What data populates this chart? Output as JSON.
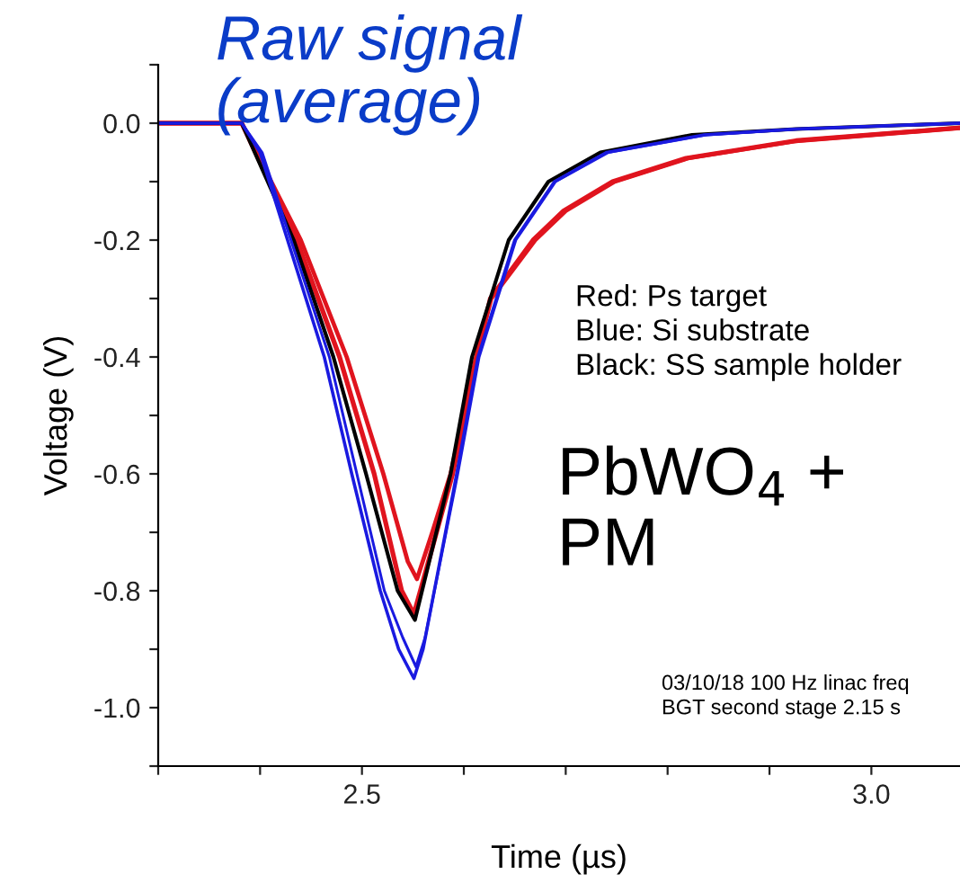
{
  "chart_data": {
    "type": "line",
    "title": "Raw signal\n(average)",
    "xlabel": "Time (µs)",
    "ylabel": "Voltage (V)",
    "annotations": [
      "Red: Ps target\nBlue: Si substrate\nBlack: SS sample holder",
      "PbWO$_{4}$ +\nPM",
      "03/10/18 100 Hz linac freq\nBGT second stage 2.15 s"
    ],
    "xlim": [
      2.3,
      3.087
    ],
    "ylim": [
      -1.1,
      0.1
    ],
    "xticks": [
      {
        "value": 2.3,
        "label": null
      },
      {
        "value": 2.4,
        "label": null
      },
      2.5,
      {
        "value": 2.6,
        "label": null
      },
      {
        "value": 2.7,
        "label": null
      },
      {
        "value": 2.8,
        "label": null
      },
      {
        "value": 2.9,
        "label": null
      },
      {
        "value": 3.0,
        "label": "3.0"
      }
    ],
    "yticks": [
      {
        "value": -1.1,
        "label": null
      },
      {
        "value": -1.0,
        "label": "-1.0"
      },
      {
        "value": -0.9,
        "label": null
      },
      -0.8,
      {
        "value": -0.7,
        "label": null
      },
      -0.6,
      {
        "value": -0.5,
        "label": null
      },
      -0.4,
      {
        "value": -0.3,
        "label": null
      },
      -0.2,
      {
        "value": -0.1,
        "label": null
      },
      {
        "value": 0.0,
        "label": "0.0"
      },
      {
        "value": 0.1,
        "label": null
      }
    ],
    "grid": false,
    "legend": false,
    "marker": "none",
    "line_style": "solid",
    "series": [
      {
        "color": "#e0141e",
        "x": [
          2.3,
          2.382,
          2.436,
          2.478,
          2.512,
          2.539,
          2.551,
          2.589,
          2.613,
          2.626,
          2.668,
          2.698,
          2.746,
          2.818,
          2.926,
          3.087
        ],
        "values": [
          0,
          0,
          -0.2,
          -0.4,
          -0.6,
          -0.8,
          -0.84,
          -0.6,
          -0.4,
          -0.3,
          -0.2,
          -0.15,
          -0.1,
          -0.06,
          -0.03,
          -0.008
        ]
      },
      {
        "color": "#e0141e",
        "x": [
          2.3,
          2.382,
          2.44,
          2.485,
          2.521,
          2.545,
          2.554,
          2.569,
          2.587,
          2.612,
          2.627,
          2.67,
          2.7,
          2.748,
          2.82,
          2.928,
          3.087
        ],
        "values": [
          0,
          0,
          -0.2,
          -0.4,
          -0.6,
          -0.75,
          -0.78,
          -0.7,
          -0.6,
          -0.4,
          -0.3,
          -0.2,
          -0.15,
          -0.1,
          -0.06,
          -0.03,
          -0.008
        ]
      },
      {
        "color": "#000000",
        "x": [
          2.3,
          2.382,
          2.433,
          2.472,
          2.504,
          2.535,
          2.552,
          2.587,
          2.608,
          2.644,
          2.683,
          2.734,
          2.824,
          2.926,
          3.087
        ],
        "values": [
          0,
          0,
          -0.2,
          -0.4,
          -0.6,
          -0.8,
          -0.85,
          -0.6,
          -0.4,
          -0.2,
          -0.1,
          -0.05,
          -0.02,
          -0.01,
          0
        ]
      },
      {
        "color": "#1a1ae0",
        "x": [
          2.3,
          2.382,
          2.4,
          2.463,
          2.49,
          2.518,
          2.536,
          2.551,
          2.56,
          2.593,
          2.614,
          2.65,
          2.689,
          2.74,
          2.836,
          2.926,
          3.087
        ],
        "values": [
          0,
          0,
          -0.05,
          -0.4,
          -0.6,
          -0.8,
          -0.9,
          -0.95,
          -0.9,
          -0.6,
          -0.4,
          -0.2,
          -0.1,
          -0.05,
          -0.02,
          -0.01,
          0
        ]
      },
      {
        "color": "#1a1ae0",
        "x": [
          2.3,
          2.382,
          2.402,
          2.468,
          2.495,
          2.522,
          2.54,
          2.553,
          2.562,
          2.594,
          2.615,
          2.651,
          2.69,
          2.742,
          2.838,
          2.928,
          3.087
        ],
        "values": [
          0,
          0,
          -0.05,
          -0.4,
          -0.6,
          -0.8,
          -0.88,
          -0.93,
          -0.88,
          -0.6,
          -0.4,
          -0.2,
          -0.1,
          -0.05,
          -0.02,
          -0.01,
          0
        ]
      }
    ]
  }
}
